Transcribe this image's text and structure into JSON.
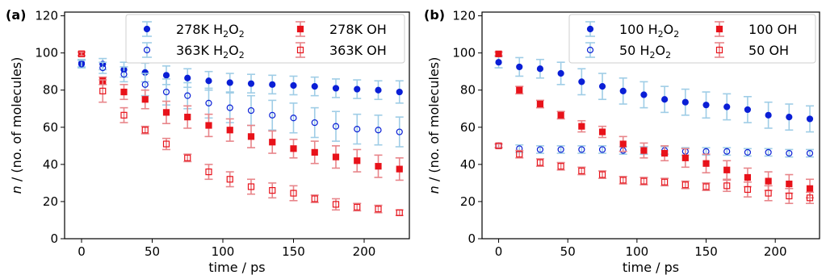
{
  "chart_data": [
    {
      "type": "scatter",
      "panel_label": "(a)",
      "xlabel": "time / ps",
      "ylabel_italic": "n",
      "ylabel_rest": " / (no. of molecules)",
      "xlim": [
        -12,
        232
      ],
      "ylim": [
        0,
        122
      ],
      "xticks": [
        0,
        50,
        100,
        150,
        200
      ],
      "yticks": [
        0,
        20,
        40,
        60,
        80,
        100,
        120
      ],
      "legend_position": "upper-right",
      "series": [
        {
          "name_main": "278K H",
          "name_sub": "2",
          "name_mid": "O",
          "name_sub2": "2",
          "name_tail": "",
          "marker": "circle-filled",
          "color": "#0a1fd6",
          "errcolor": "#9fcde6",
          "x": [
            0,
            15,
            30,
            45,
            60,
            75,
            90,
            105,
            120,
            135,
            150,
            165,
            180,
            195,
            210,
            225
          ],
          "y": [
            94.5,
            94,
            91,
            89.5,
            88,
            86.5,
            85,
            84,
            83.5,
            83,
            82.5,
            82,
            81,
            80.5,
            80,
            79
          ],
          "err": [
            2,
            3,
            4,
            5,
            5,
            5,
            5,
            5,
            5,
            5,
            5,
            5,
            5,
            5,
            5,
            6
          ]
        },
        {
          "name_main": "363K H",
          "name_sub": "2",
          "name_mid": "O",
          "name_sub2": "2",
          "name_tail": "",
          "marker": "circle-open",
          "color": "#0a1fd6",
          "errcolor": "#9fcde6",
          "x": [
            0,
            15,
            30,
            45,
            60,
            75,
            90,
            105,
            120,
            135,
            150,
            165,
            180,
            195,
            210,
            225
          ],
          "y": [
            94,
            92,
            88.5,
            83,
            79,
            77,
            73,
            70.5,
            69,
            66.5,
            65,
            62.5,
            60.5,
            59,
            58.5,
            57.5
          ],
          "err": [
            2,
            3,
            4,
            6,
            7,
            7,
            8,
            8,
            8,
            8,
            8,
            8,
            8,
            8,
            8,
            8
          ]
        },
        {
          "name_main": "278K OH",
          "name_sub": "",
          "name_mid": "",
          "name_sub2": "",
          "name_tail": "",
          "marker": "square-filled",
          "color": "#e8121a",
          "errcolor": "#e8858a",
          "x": [
            0,
            15,
            30,
            45,
            60,
            75,
            90,
            105,
            120,
            135,
            150,
            165,
            180,
            195,
            210,
            225
          ],
          "y": [
            99.5,
            85,
            79,
            75,
            68,
            65.5,
            61,
            58.5,
            55,
            52,
            48.5,
            46.5,
            44,
            42,
            39,
            37.5
          ],
          "err": [
            1,
            2,
            4,
            5,
            6,
            6,
            6,
            6,
            6,
            6,
            5,
            6,
            6,
            6,
            6,
            6
          ]
        },
        {
          "name_main": "363K  OH",
          "name_sub": "",
          "name_mid": "",
          "name_sub2": "",
          "name_tail": "",
          "marker": "square-open",
          "color": "#e8121a",
          "errcolor": "#e8858a",
          "x": [
            0,
            15,
            30,
            45,
            60,
            75,
            90,
            105,
            120,
            135,
            150,
            165,
            180,
            195,
            210,
            225
          ],
          "y": [
            99.5,
            79.5,
            66.5,
            58.5,
            51,
            43.5,
            36,
            32,
            28,
            26,
            24.5,
            21.5,
            18.5,
            17,
            16,
            14
          ],
          "err": [
            1,
            6,
            4,
            2,
            3,
            2,
            4,
            4,
            4,
            4,
            4,
            2,
            3,
            2,
            2,
            1.5
          ]
        }
      ]
    },
    {
      "type": "scatter",
      "panel_label": "(b)",
      "xlabel": "time / ps",
      "ylabel_italic": "n",
      "ylabel_rest": " / (no. of molecules)",
      "xlim": [
        -12,
        232
      ],
      "ylim": [
        0,
        122
      ],
      "xticks": [
        0,
        50,
        100,
        150,
        200
      ],
      "yticks": [
        0,
        20,
        40,
        60,
        80,
        100,
        120
      ],
      "legend_position": "upper-right",
      "series": [
        {
          "name_main": "100 H",
          "name_sub": "2",
          "name_mid": "O",
          "name_sub2": "2",
          "name_tail": "",
          "marker": "circle-filled",
          "color": "#0a1fd6",
          "errcolor": "#9fcde6",
          "x": [
            0,
            15,
            30,
            45,
            60,
            75,
            90,
            105,
            120,
            135,
            150,
            165,
            180,
            195,
            210,
            225
          ],
          "y": [
            95,
            92.5,
            91.5,
            89,
            84.5,
            82,
            79.5,
            77.5,
            75,
            73.5,
            72,
            71,
            69.5,
            66.5,
            65.5,
            64.5
          ],
          "err": [
            3,
            5,
            5,
            6,
            7,
            7,
            7,
            7,
            7,
            7,
            7,
            7,
            7,
            7,
            7,
            7
          ]
        },
        {
          "name_main": "50 H",
          "name_sub": "2",
          "name_mid": "O",
          "name_sub2": "2",
          "name_tail": "",
          "marker": "circle-open",
          "color": "#0a1fd6",
          "errcolor": "#9fcde6",
          "x": [
            0,
            15,
            30,
            45,
            60,
            75,
            90,
            105,
            120,
            135,
            150,
            165,
            180,
            195,
            210,
            225
          ],
          "y": [
            50,
            48.5,
            48,
            48,
            48,
            48,
            47.5,
            47.5,
            47.5,
            47,
            47,
            47,
            46.5,
            46.5,
            46,
            46
          ],
          "err": [
            1,
            2,
            2,
            2,
            2,
            2,
            2,
            2,
            2,
            2,
            2,
            2,
            2,
            2,
            2,
            2
          ]
        },
        {
          "name_main": "100 OH",
          "name_sub": "",
          "name_mid": "",
          "name_sub2": "",
          "name_tail": "",
          "marker": "square-filled",
          "color": "#e8121a",
          "errcolor": "#e8858a",
          "x": [
            0,
            15,
            30,
            45,
            60,
            75,
            90,
            105,
            120,
            135,
            150,
            165,
            180,
            195,
            210,
            225
          ],
          "y": [
            99.5,
            80,
            72.5,
            66.5,
            60.5,
            57.5,
            51,
            47.5,
            46,
            43.5,
            40.5,
            37,
            33,
            31,
            29.5,
            27
          ],
          "err": [
            1,
            2,
            2,
            2,
            3,
            3,
            4,
            4,
            4,
            5,
            5,
            5,
            5,
            5,
            5,
            5
          ]
        },
        {
          "name_main": "50 OH",
          "name_sub": "",
          "name_mid": "",
          "name_sub2": "",
          "name_tail": "",
          "marker": "square-open",
          "color": "#e8121a",
          "errcolor": "#e8858a",
          "x": [
            0,
            15,
            30,
            45,
            60,
            75,
            90,
            105,
            120,
            135,
            150,
            165,
            180,
            195,
            210,
            225
          ],
          "y": [
            50,
            45.5,
            41,
            39,
            36.5,
            34.5,
            31.5,
            31,
            30.5,
            29,
            28,
            28.5,
            26.5,
            24.5,
            23,
            22
          ],
          "err": [
            1,
            2,
            2,
            2,
            2,
            2,
            2,
            2,
            2,
            2,
            2,
            3,
            4,
            4,
            4,
            3
          ]
        }
      ]
    }
  ]
}
